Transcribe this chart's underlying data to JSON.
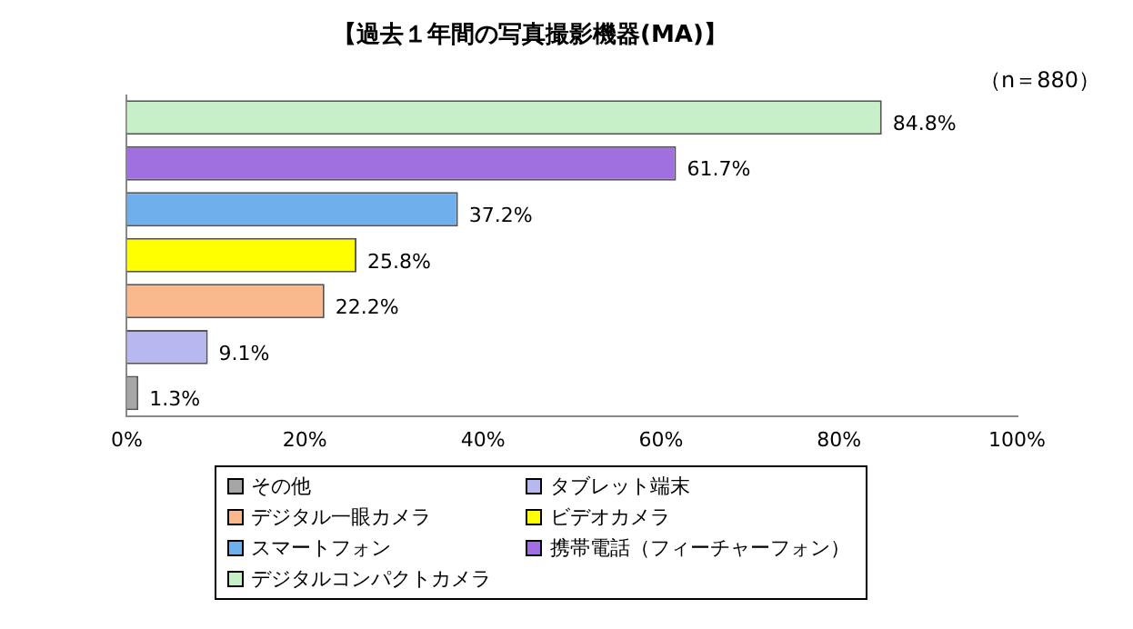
{
  "chart_data": {
    "type": "bar",
    "orientation": "horizontal",
    "title": "【過去１年間の写真撮影機器(MA)】",
    "annotations": [
      "（n＝880）"
    ],
    "categories": [
      null,
      null,
      null,
      null,
      null,
      null,
      null
    ],
    "series": [
      {
        "name": "その他",
        "color": "#a6a6a6",
        "values": [
          null,
          null,
          null,
          null,
          null,
          null,
          1.3
        ],
        "value_labels": [
          null,
          null,
          null,
          null,
          null,
          null,
          "1.3%"
        ]
      },
      {
        "name": "タブレット端末",
        "color": "#b8b8f0",
        "values": [
          null,
          null,
          null,
          null,
          null,
          9.1,
          null
        ],
        "value_labels": [
          null,
          null,
          null,
          null,
          null,
          "9.1%",
          null
        ]
      },
      {
        "name": "デジタル一眼カメラ",
        "color": "#f9b98c",
        "values": [
          null,
          null,
          null,
          null,
          22.2,
          null,
          null
        ],
        "value_labels": [
          null,
          null,
          null,
          null,
          "22.2%",
          null,
          null
        ]
      },
      {
        "name": "ビデオカメラ",
        "color": "#ffff00",
        "values": [
          null,
          null,
          null,
          25.8,
          null,
          null,
          null
        ],
        "value_labels": [
          null,
          null,
          null,
          "25.8%",
          null,
          null,
          null
        ]
      },
      {
        "name": "スマートフォン",
        "color": "#6fb0ec",
        "values": [
          null,
          null,
          37.2,
          null,
          null,
          null,
          null
        ],
        "value_labels": [
          null,
          null,
          "37.2%",
          null,
          null,
          null,
          null
        ]
      },
      {
        "name": "携帯電話（フィーチャーフォン）",
        "color": "#a070e0",
        "values": [
          null,
          61.7,
          null,
          null,
          null,
          null,
          null
        ],
        "value_labels": [
          null,
          "61.7%",
          null,
          null,
          null,
          null,
          null
        ]
      },
      {
        "name": "デジタルコンパクトカメラ",
        "color": "#c8f0c8",
        "values": [
          84.8,
          null,
          null,
          null,
          null,
          null,
          null
        ],
        "value_labels": [
          "84.8%",
          null,
          null,
          null,
          null,
          null,
          null
        ]
      }
    ],
    "xlim": [
      0,
      100
    ],
    "xticks": [
      {
        "value": 0,
        "label": "0%"
      },
      {
        "value": 20,
        "label": "20%"
      },
      {
        "value": 40,
        "label": "40%"
      },
      {
        "value": 60,
        "label": "60%"
      },
      {
        "value": 80,
        "label": "80%"
      },
      {
        "value": 100,
        "label": "100%"
      }
    ],
    "grid": false,
    "legend": "bottom"
  }
}
